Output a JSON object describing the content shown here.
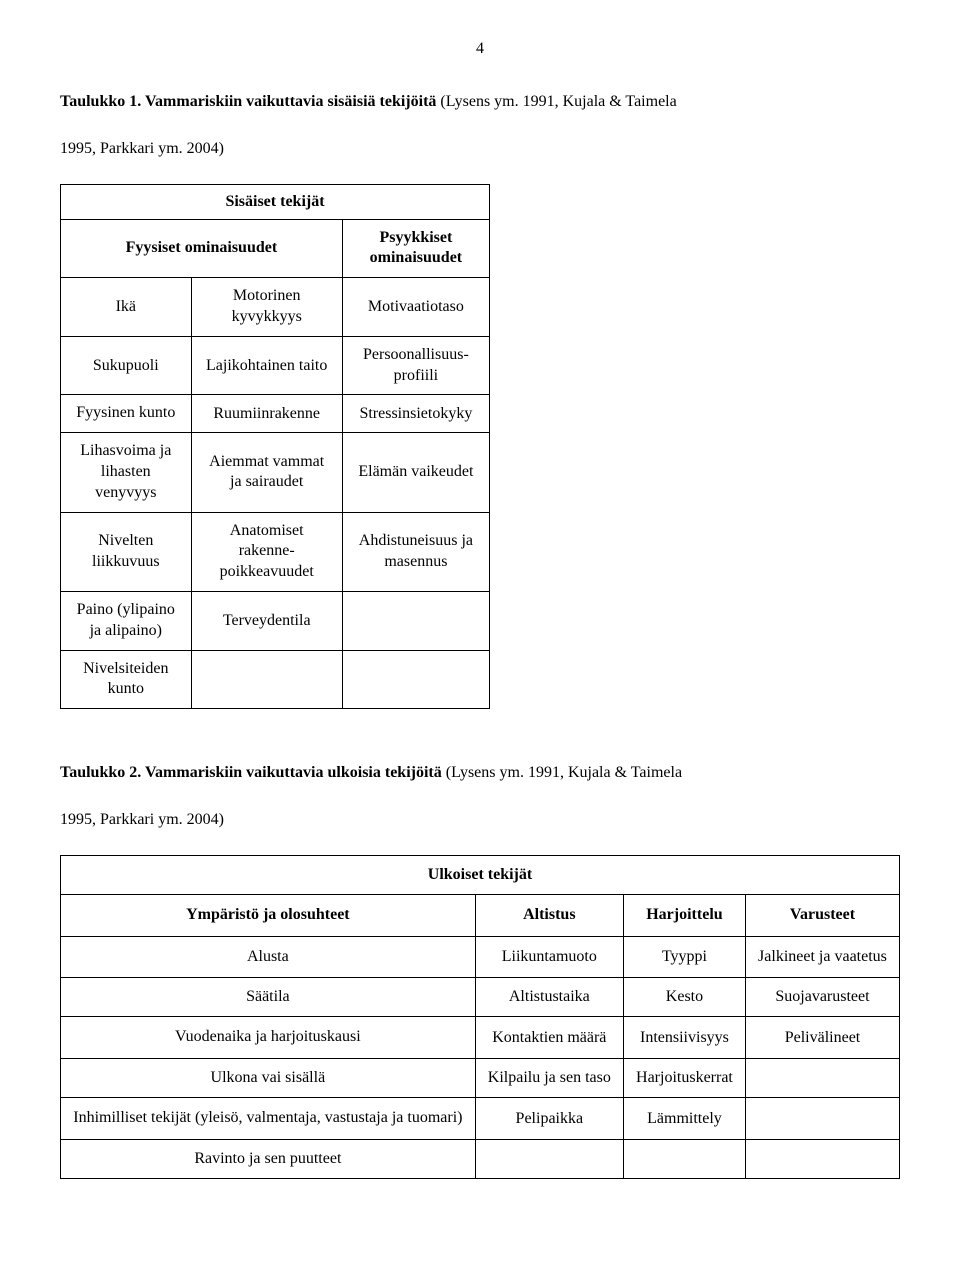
{
  "page_number": "4",
  "heading1": {
    "bold_part": "Taulukko 1. Vammariskiin vaikuttavia sisäisiä tekijöitä",
    "rest": " (Lysens ym. 1991, Kujala & Taimela",
    "line2": "1995, Parkkari ym. 2004)"
  },
  "table1": {
    "main_header": "Sisäiset tekijät",
    "col_headers": [
      "Fyysiset ominaisuudet",
      "Psyykkiset ominaisuudet"
    ],
    "rows": [
      [
        "Ikä",
        "Motorinen kyvykkyys",
        "Motivaatiotaso"
      ],
      [
        "Sukupuoli",
        "Lajikohtainen taito",
        "Persoonallisuus-profiili"
      ],
      [
        "Fyysinen kunto",
        "Ruumiinrakenne",
        "Stressinsietokyky"
      ],
      [
        "Lihasvoima ja lihasten venyvyys",
        "Aiemmat vammat ja sairaudet",
        "Elämän vaikeudet"
      ],
      [
        "Nivelten liikkuvuus",
        "Anatomiset rakenne-poikkeavuudet",
        "Ahdistuneisuus ja masennus"
      ],
      [
        "Paino (ylipaino ja alipaino)",
        "Terveydentila",
        ""
      ],
      [
        "Nivelsiteiden kunto",
        "",
        ""
      ]
    ]
  },
  "heading2": {
    "bold_part": "Taulukko 2. Vammariskiin vaikuttavia ulkoisia tekijöitä",
    "rest": " (Lysens ym. 1991, Kujala & Taimela",
    "line2": "1995, Parkkari ym. 2004)"
  },
  "table2": {
    "main_header": "Ulkoiset tekijät",
    "col_headers": [
      "Ympäristö ja olosuhteet",
      "Altistus",
      "Harjoittelu",
      "Varusteet"
    ],
    "rows": [
      [
        "Alusta",
        "Liikuntamuoto",
        "Tyyppi",
        "Jalkineet ja vaatetus"
      ],
      [
        "Säätila",
        "Altistustaika",
        "Kesto",
        "Suojavarusteet"
      ],
      [
        "Vuodenaika ja harjoituskausi",
        "Kontaktien määrä",
        "Intensiivisyys",
        "Pelivälineet"
      ],
      [
        "Ulkona vai sisällä",
        "Kilpailu ja sen taso",
        "Harjoituskerrat",
        ""
      ],
      [
        "Inhimilliset tekijät (yleisö, valmentaja, vastustaja ja tuomari)",
        "Pelipaikka",
        "Lämmittely",
        ""
      ],
      [
        "Ravinto ja sen puutteet",
        "",
        "",
        ""
      ]
    ]
  }
}
